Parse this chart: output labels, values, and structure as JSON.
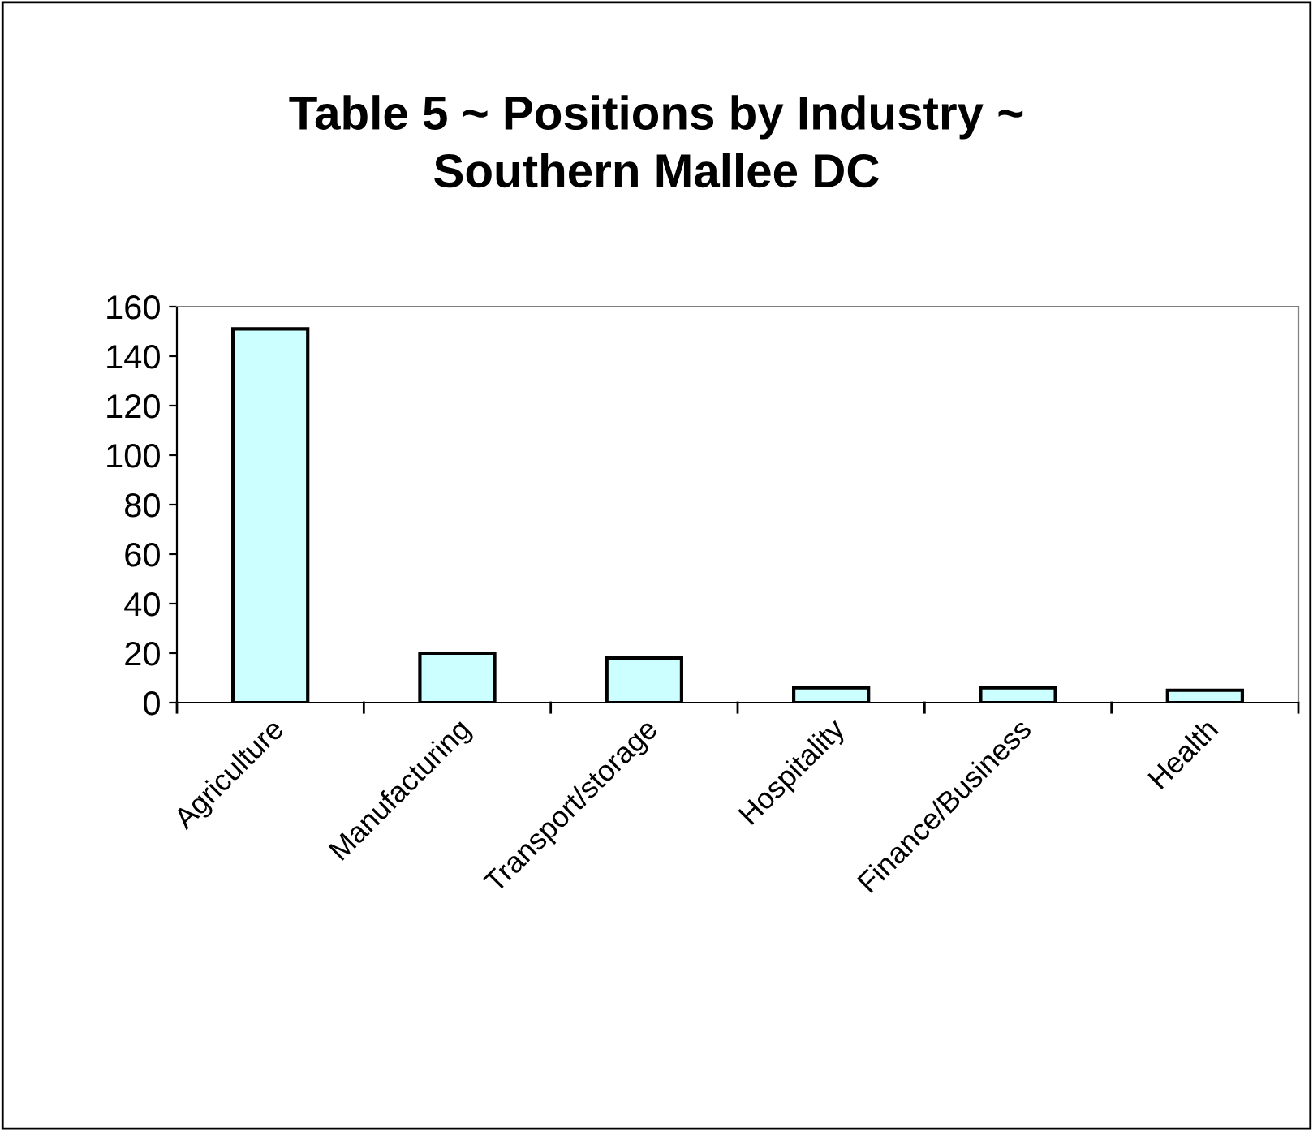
{
  "chart_data": {
    "type": "bar",
    "title": "Table 5 ~ Positions by Industry ~\nSouthern Mallee DC",
    "categories": [
      "Agriculture",
      "Manufacturing",
      "Transport/storage",
      "Hospitality",
      "Finance/Business",
      "Health"
    ],
    "values": [
      151,
      20,
      18,
      6,
      6,
      5
    ],
    "color": "#ccffff",
    "ylim": [
      0,
      160
    ],
    "yticks": [
      0,
      20,
      40,
      60,
      80,
      100,
      120,
      140,
      160
    ],
    "grid": false,
    "legend": false
  }
}
